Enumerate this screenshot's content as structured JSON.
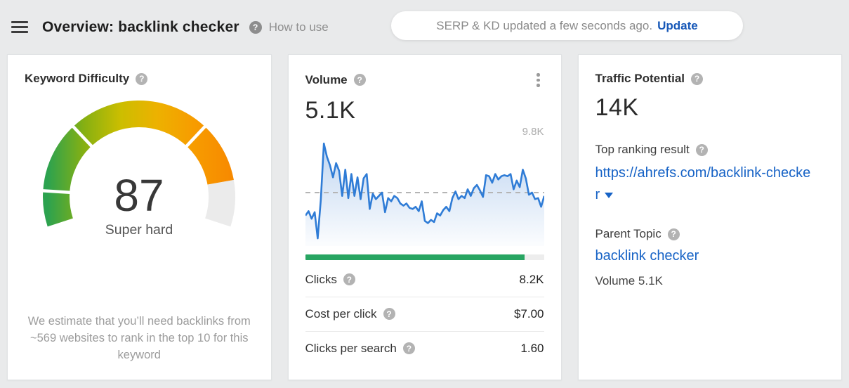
{
  "header": {
    "title": "Overview: backlink checker",
    "help_text": "How to use",
    "toast": {
      "message": "SERP & KD updated a few seconds ago.",
      "action": "Update"
    }
  },
  "cards": {
    "keyword_difficulty": {
      "title": "Keyword Difficulty",
      "value": "87",
      "label": "Super hard",
      "note": "We estimate that you’ll need backlinks from ~569 websites to rank in the top 10 for this keyword"
    },
    "volume": {
      "title": "Volume",
      "value": "5.1K",
      "peak_label": "9.8K",
      "bar": {
        "percent": 92,
        "color": "#28a562",
        "track": "#ededed"
      },
      "stats": [
        {
          "label": "Clicks",
          "value": "8.2K"
        },
        {
          "label": "Cost per click",
          "value": "$7.00"
        },
        {
          "label": "Clicks per search",
          "value": "1.60"
        }
      ]
    },
    "traffic_potential": {
      "title": "Traffic Potential",
      "value": "14K",
      "top_ranking_label": "Top ranking result",
      "top_ranking_url": "https://ahrefs.com/backlink-checker",
      "parent_topic_label": "Parent Topic",
      "parent_topic": "backlink checker",
      "parent_topic_volume": "Volume 5.1K"
    }
  },
  "colors": {
    "link_blue": "#1763c6",
    "update_blue": "#1758b8",
    "chart_blue": "#2f7cd6",
    "bar_green": "#28a562"
  },
  "chart_data": [
    {
      "type": "gauge",
      "title": "Keyword Difficulty",
      "value": 87,
      "min": 0,
      "max": 100,
      "label": "Super hard",
      "thresholds": [
        10,
        30,
        70
      ],
      "gradient_stops": [
        "#2ca24f",
        "#86b012",
        "#ccbe00",
        "#edb100",
        "#f79c00",
        "#f78a00"
      ],
      "empty_color": "#ebebeb",
      "sweep_degrees": 216
    },
    {
      "type": "area",
      "title": "Volume trend",
      "ylim": [
        0,
        9.8
      ],
      "peak_label": "9.8K",
      "dashed_line": 4.9,
      "line_color": "#2f7cd6",
      "dash_color": "#b5b5b5",
      "values": [
        2.8,
        3.2,
        2.5,
        3.1,
        0.7,
        4.2,
        9.4,
        8.2,
        7.4,
        6.3,
        7.6,
        6.9,
        4.6,
        7.0,
        4.4,
        6.6,
        4.6,
        6.3,
        4.3,
        6.2,
        6.6,
        3.4,
        4.8,
        4.3,
        4.6,
        4.9,
        3.1,
        4.4,
        4.1,
        4.6,
        4.4,
        3.9,
        3.7,
        3.9,
        3.5,
        3.4,
        3.6,
        3.2,
        4.1,
        2.3,
        2.1,
        2.4,
        2.2,
        3.0,
        2.8,
        3.3,
        3.6,
        3.2,
        4.4,
        5.0,
        4.3,
        4.6,
        4.4,
        5.2,
        4.6,
        5.3,
        5.6,
        5.1,
        4.5,
        6.5,
        6.4,
        5.8,
        6.6,
        6.1,
        6.4,
        6.5,
        6.4,
        6.6,
        5.2,
        6.0,
        5.4,
        7.0,
        6.2,
        4.7,
        4.9,
        4.3,
        4.4,
        3.6,
        4.6
      ]
    }
  ]
}
